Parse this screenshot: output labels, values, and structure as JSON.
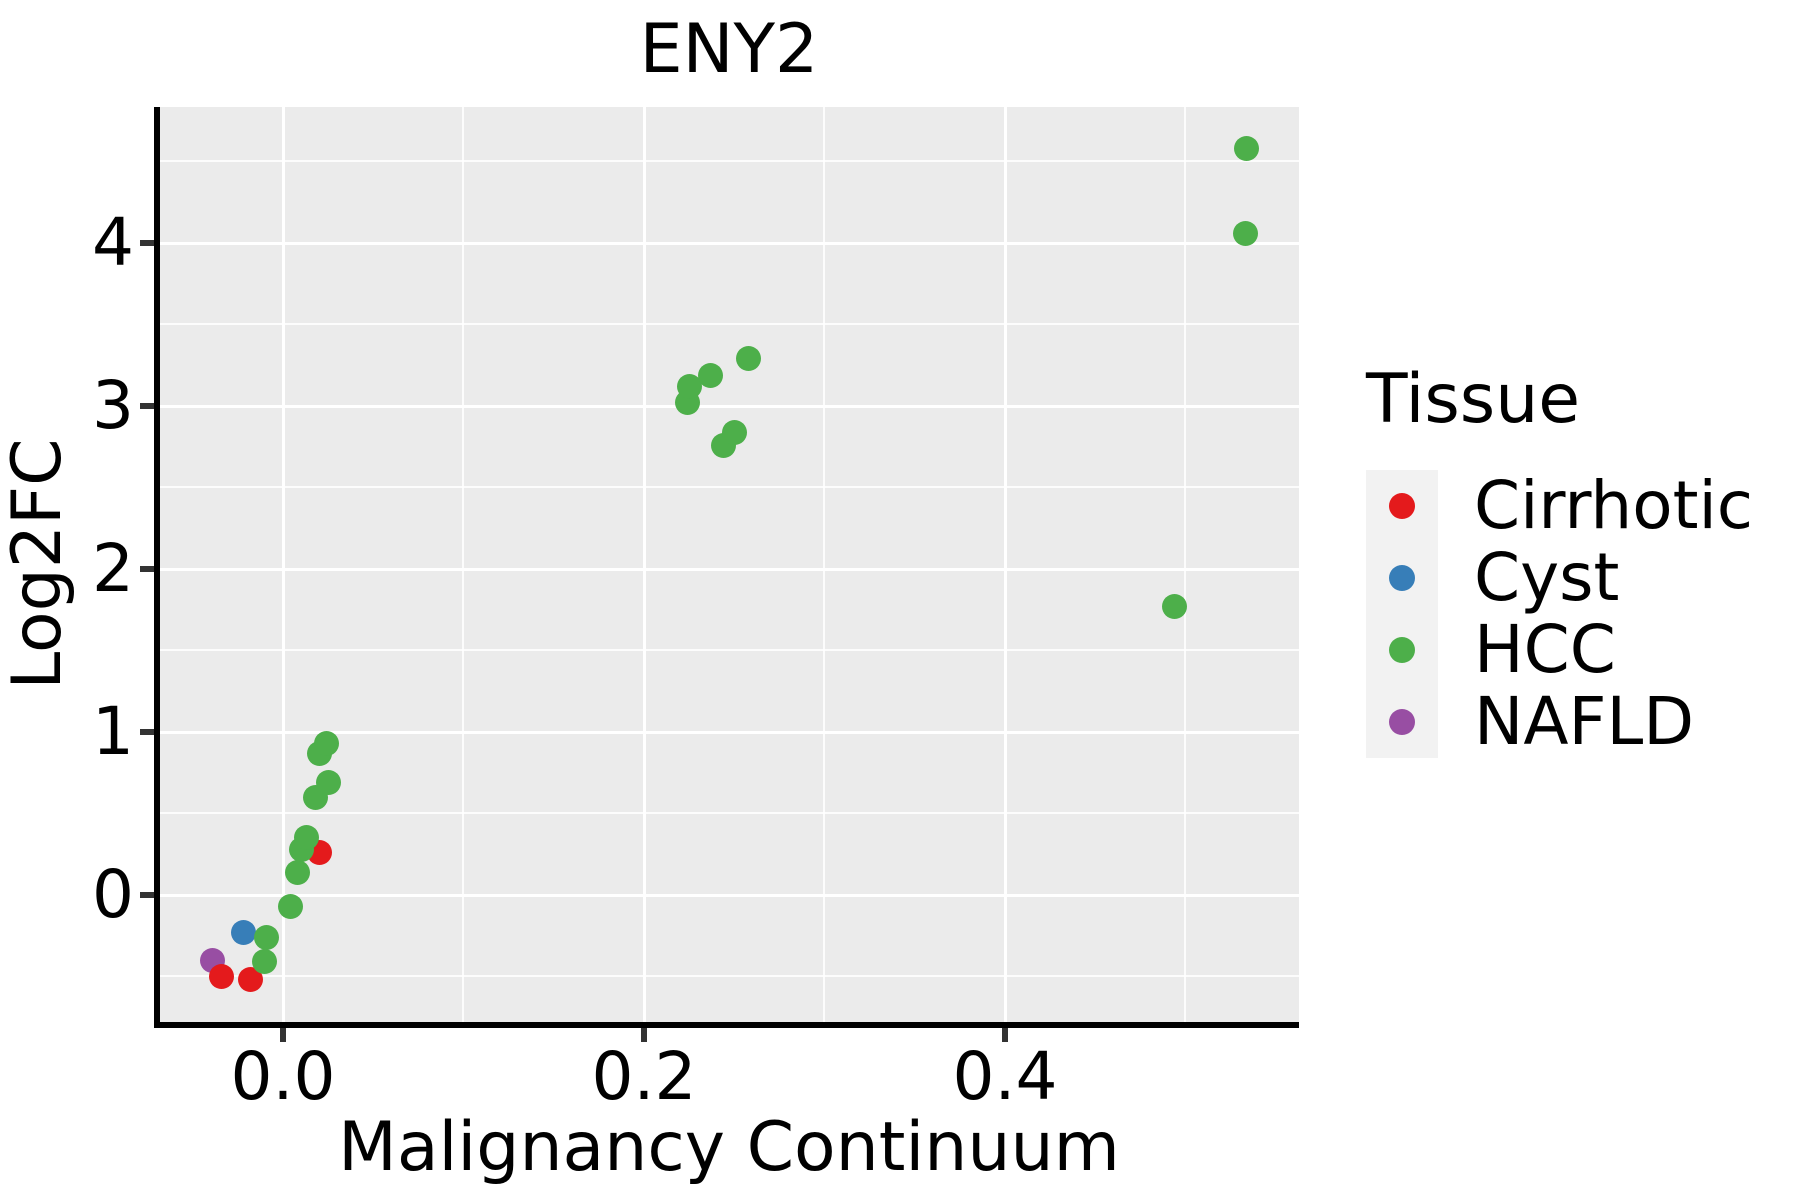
{
  "chart_data": {
    "type": "scatter",
    "title": "ENY2",
    "xlabel": "Malignancy Continuum",
    "ylabel": "Log2FC",
    "xlim": [
      -0.068,
      0.563
    ],
    "ylim": [
      -0.78,
      4.83
    ],
    "x_ticks": [
      0.0,
      0.2,
      0.4
    ],
    "x_tick_labels": [
      "0.0",
      "0.2",
      "0.4"
    ],
    "x_minor_ticks": [
      0.1,
      0.3,
      0.5
    ],
    "y_ticks": [
      0,
      1,
      2,
      3,
      4
    ],
    "y_tick_labels": [
      "0",
      "1",
      "2",
      "3",
      "4"
    ],
    "y_minor_ticks": [
      -0.5,
      0.5,
      1.5,
      2.5,
      3.5,
      4.5
    ],
    "grid": "white major and minor gridlines on gray panel",
    "panel_background": "#EBEBEB",
    "legend": {
      "title": "Tissue",
      "position": "right",
      "key_background": "#F2F2F2",
      "entries": [
        {
          "label": "Cirrhotic",
          "color": "#E41A1C"
        },
        {
          "label": "Cyst",
          "color": "#377EB8"
        },
        {
          "label": "HCC",
          "color": "#4DAF4A"
        },
        {
          "label": "NAFLD",
          "color": "#984EA3"
        }
      ]
    },
    "series": [
      {
        "name": "NAFLD",
        "color": "#984EA3",
        "points": [
          [
            -0.039,
            -0.4
          ]
        ]
      },
      {
        "name": "Cirrhotic",
        "color": "#E41A1C",
        "points": [
          [
            -0.034,
            -0.5
          ],
          [
            -0.018,
            -0.52
          ],
          [
            0.02,
            0.26
          ]
        ]
      },
      {
        "name": "Cyst",
        "color": "#377EB8",
        "points": [
          [
            -0.022,
            -0.23
          ]
        ]
      },
      {
        "name": "HCC",
        "color": "#4DAF4A",
        "points": [
          [
            -0.01,
            -0.41
          ],
          [
            -0.009,
            -0.26
          ],
          [
            0.004,
            -0.07
          ],
          [
            0.008,
            0.14
          ],
          [
            0.01,
            0.28
          ],
          [
            0.013,
            0.35
          ],
          [
            0.018,
            0.6
          ],
          [
            0.025,
            0.69
          ],
          [
            0.02,
            0.87
          ],
          [
            0.024,
            0.93
          ],
          [
            0.494,
            1.77
          ],
          [
            0.244,
            2.76
          ],
          [
            0.25,
            2.84
          ],
          [
            0.224,
            3.02
          ],
          [
            0.225,
            3.12
          ],
          [
            0.237,
            3.19
          ],
          [
            0.258,
            3.29
          ],
          [
            0.533,
            4.06
          ],
          [
            0.534,
            4.58
          ]
        ]
      }
    ]
  }
}
